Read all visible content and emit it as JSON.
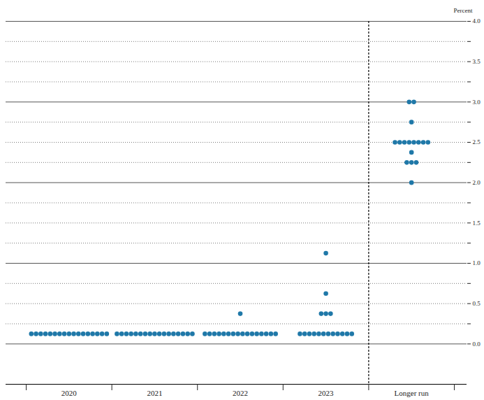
{
  "chart_data": {
    "type": "scatter",
    "y_label": "Percent",
    "categories": [
      "2020",
      "2021",
      "2022",
      "2023",
      "Longer run"
    ],
    "values": [
      [
        0.125,
        0.125,
        0.125,
        0.125,
        0.125,
        0.125,
        0.125,
        0.125,
        0.125,
        0.125,
        0.125,
        0.125,
        0.125,
        0.125,
        0.125,
        0.125,
        0.125
      ],
      [
        0.125,
        0.125,
        0.125,
        0.125,
        0.125,
        0.125,
        0.125,
        0.125,
        0.125,
        0.125,
        0.125,
        0.125,
        0.125,
        0.125,
        0.125,
        0.125,
        0.125
      ],
      [
        0.125,
        0.125,
        0.125,
        0.125,
        0.125,
        0.125,
        0.125,
        0.125,
        0.125,
        0.125,
        0.125,
        0.125,
        0.125,
        0.125,
        0.125,
        0.125,
        0.375
      ],
      [
        0.125,
        0.125,
        0.125,
        0.125,
        0.125,
        0.125,
        0.125,
        0.125,
        0.125,
        0.125,
        0.125,
        0.125,
        0.375,
        0.375,
        0.375,
        0.625,
        1.125
      ],
      [
        2.0,
        2.25,
        2.25,
        2.25,
        2.375,
        2.5,
        2.5,
        2.5,
        2.5,
        2.5,
        2.5,
        2.5,
        2.5,
        2.75,
        3.0,
        3.0
      ]
    ],
    "color": "#1f78a8",
    "marker": "circle",
    "ylim": [
      -0.5,
      4.0
    ],
    "yticks": [
      {
        "value": 0,
        "label": "0.0"
      },
      {
        "value": 0.5,
        "label": "0.5"
      },
      {
        "value": 1,
        "label": "1.0"
      },
      {
        "value": 1.5,
        "label": "1.5"
      },
      {
        "value": 2,
        "label": "2.0"
      },
      {
        "value": 2.5,
        "label": "2.5"
      },
      {
        "value": 3,
        "label": "3.0"
      },
      {
        "value": 3.5,
        "label": "3.5"
      },
      {
        "value": 4,
        "label": "4.0"
      }
    ],
    "yticks_minor": [
      0.25,
      0.75,
      1.25,
      1.75,
      2.25,
      2.75,
      3.25,
      3.75
    ],
    "grid": true
  }
}
